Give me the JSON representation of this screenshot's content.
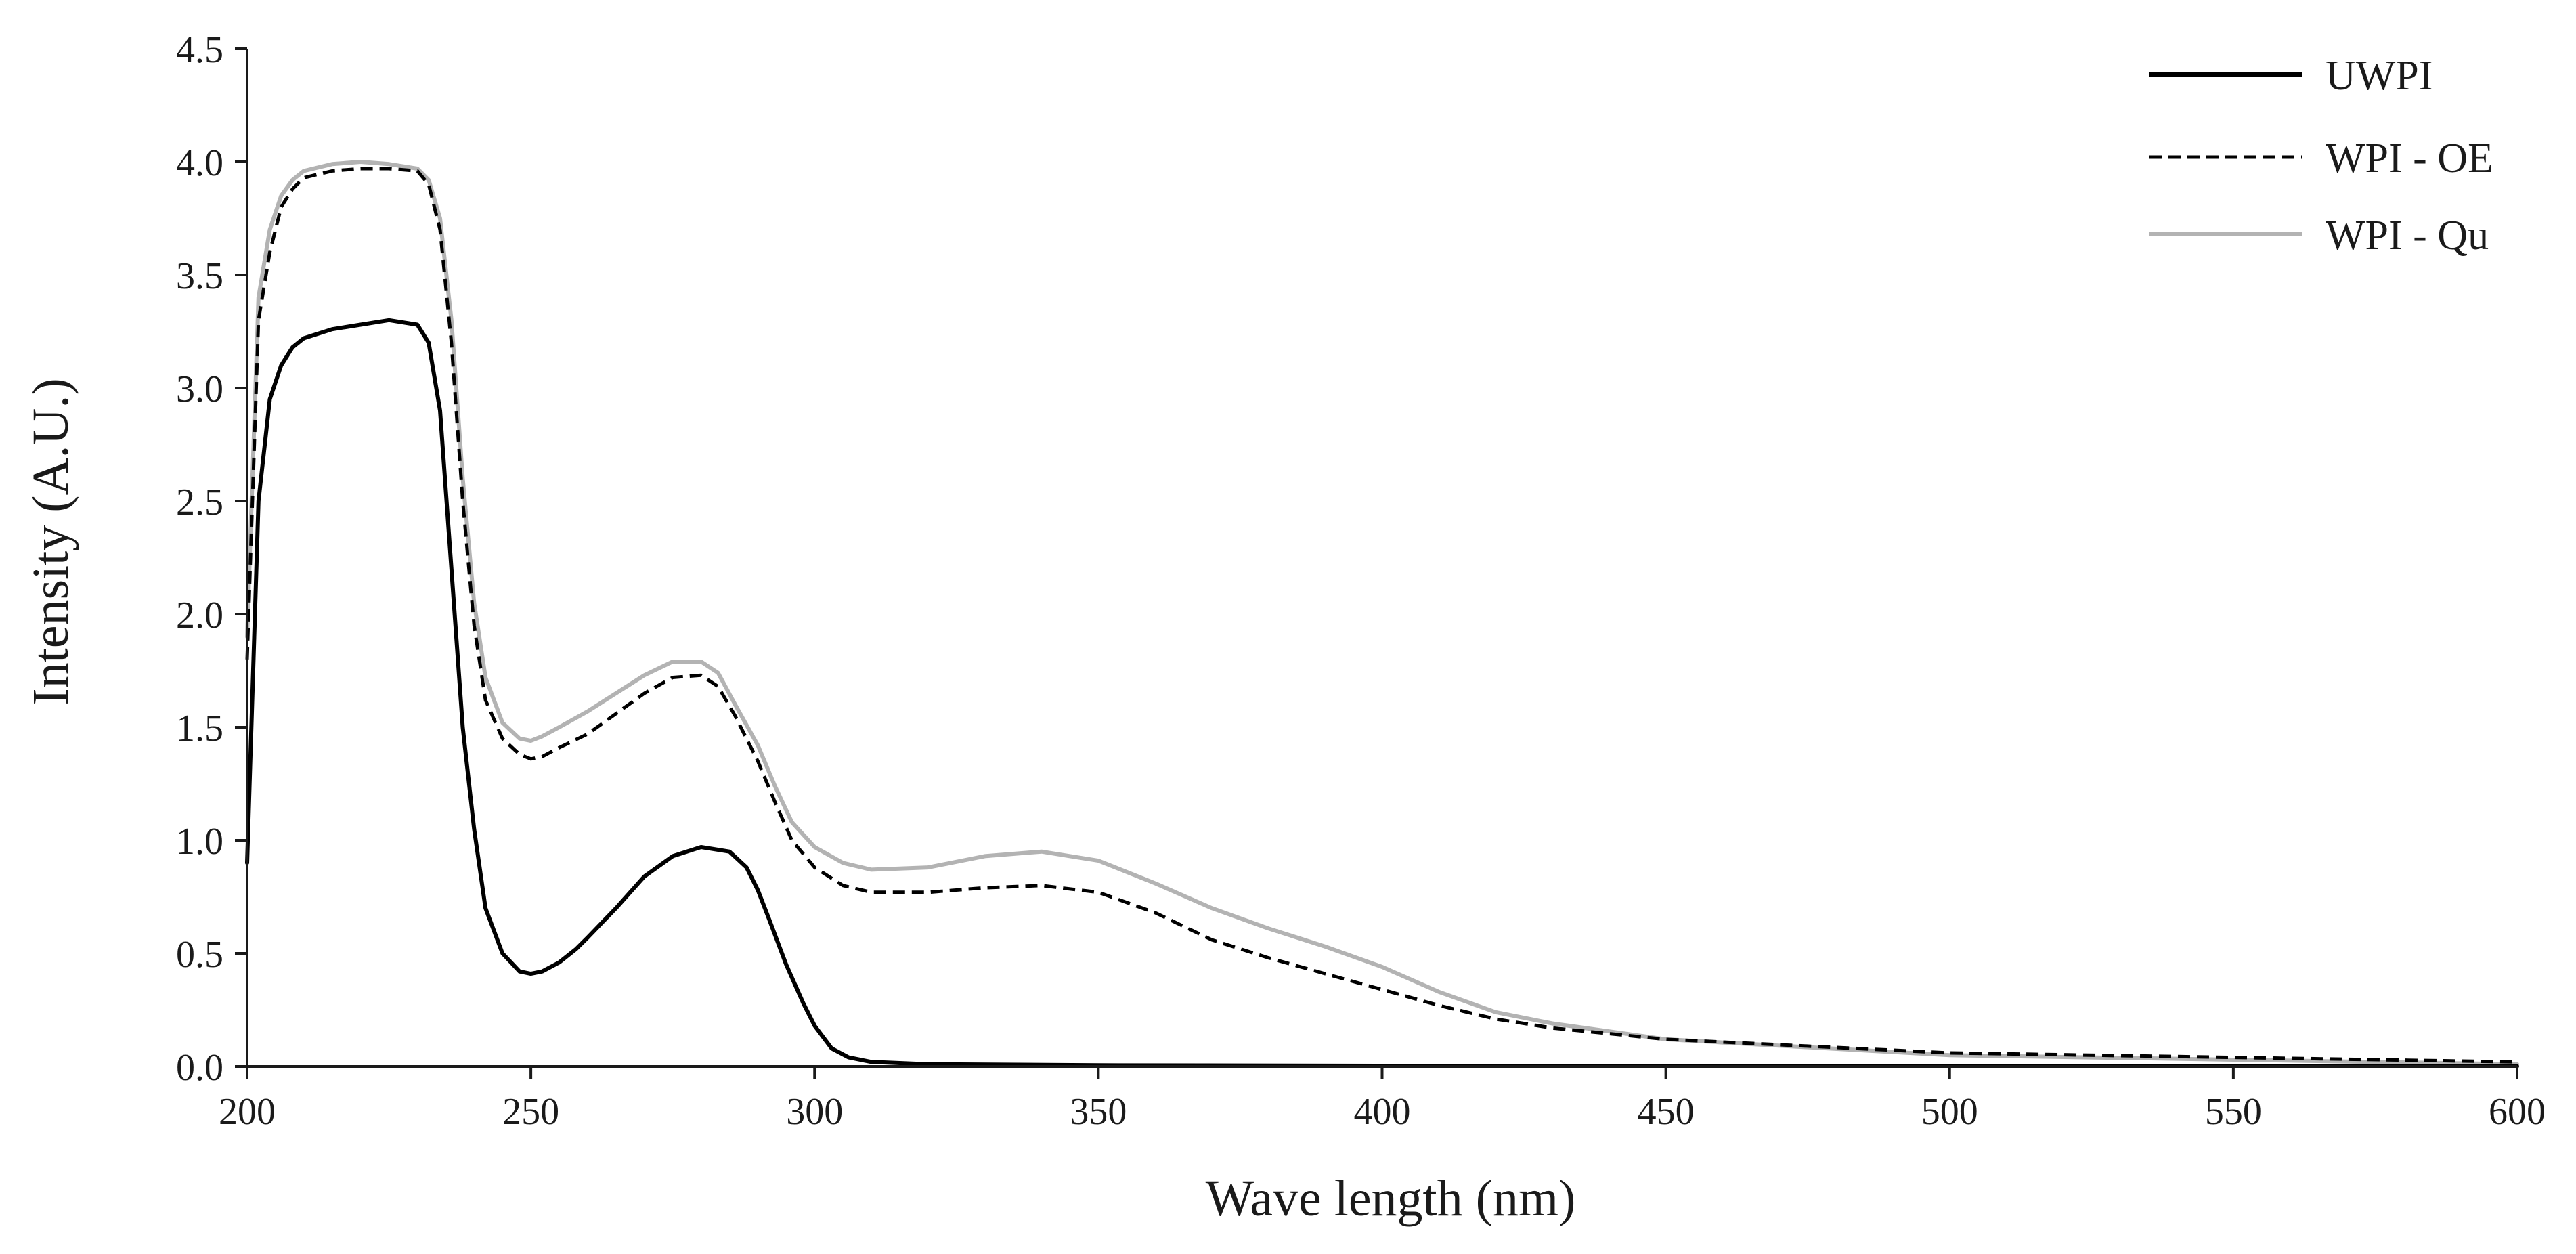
{
  "chart_data": {
    "type": "line",
    "title": "",
    "xlabel": "Wave length (nm)",
    "ylabel": "Intensity (A.U.)",
    "xlim": [
      200,
      600
    ],
    "ylim": [
      0,
      4.5
    ],
    "x_ticks": [
      200,
      250,
      300,
      350,
      400,
      450,
      500,
      550,
      600
    ],
    "y_ticks": [
      0,
      0.5,
      1.0,
      1.5,
      2.0,
      2.5,
      3.0,
      3.5,
      4.0,
      4.5
    ],
    "x_tick_labels": [
      "200",
      "250",
      "300",
      "350",
      "400",
      "450",
      "500",
      "550",
      "600"
    ],
    "y_tick_labels": [
      "0.0",
      "0.5",
      "1.0",
      "1.5",
      "2.0",
      "2.5",
      "3.0",
      "3.5",
      "4.0",
      "4.5"
    ],
    "grid": false,
    "legend_position": "top-right",
    "series": [
      {
        "name": "UWPI",
        "color": "#000000",
        "style": "solid",
        "x": [
          200,
          202,
          204,
          206,
          208,
          210,
          215,
          220,
          225,
          230,
          232,
          234,
          236,
          238,
          240,
          242,
          245,
          248,
          250,
          252,
          255,
          258,
          260,
          265,
          270,
          275,
          280,
          285,
          288,
          290,
          292,
          295,
          298,
          300,
          303,
          306,
          310,
          320,
          350,
          400,
          450,
          500,
          550,
          600
        ],
        "y": [
          0.9,
          2.5,
          2.95,
          3.1,
          3.18,
          3.22,
          3.26,
          3.28,
          3.3,
          3.28,
          3.2,
          2.9,
          2.2,
          1.5,
          1.05,
          0.7,
          0.5,
          0.42,
          0.41,
          0.42,
          0.46,
          0.52,
          0.57,
          0.7,
          0.84,
          0.93,
          0.97,
          0.95,
          0.88,
          0.78,
          0.65,
          0.45,
          0.28,
          0.18,
          0.08,
          0.04,
          0.02,
          0.01,
          0.005,
          0.003,
          0.002,
          0.002,
          0.002,
          0.001
        ]
      },
      {
        "name": "WPI - OE",
        "color": "#000000",
        "style": "dashed",
        "x": [
          200,
          202,
          204,
          206,
          208,
          210,
          215,
          220,
          225,
          230,
          232,
          234,
          236,
          238,
          240,
          242,
          245,
          248,
          250,
          252,
          255,
          260,
          265,
          270,
          275,
          280,
          283,
          286,
          290,
          293,
          296,
          300,
          305,
          310,
          320,
          330,
          340,
          350,
          360,
          370,
          380,
          390,
          400,
          410,
          420,
          430,
          450,
          500,
          550,
          600
        ],
        "y": [
          1.8,
          3.3,
          3.6,
          3.8,
          3.88,
          3.93,
          3.96,
          3.97,
          3.97,
          3.96,
          3.9,
          3.7,
          3.2,
          2.5,
          1.95,
          1.62,
          1.45,
          1.38,
          1.36,
          1.37,
          1.41,
          1.47,
          1.56,
          1.65,
          1.72,
          1.73,
          1.68,
          1.55,
          1.35,
          1.17,
          1.0,
          0.88,
          0.8,
          0.77,
          0.77,
          0.79,
          0.8,
          0.77,
          0.68,
          0.56,
          0.48,
          0.41,
          0.34,
          0.27,
          0.21,
          0.17,
          0.12,
          0.06,
          0.04,
          0.02
        ]
      },
      {
        "name": "WPI - Qu",
        "color": "#b3b3b3",
        "style": "solid",
        "x": [
          200,
          202,
          204,
          206,
          208,
          210,
          215,
          220,
          225,
          230,
          232,
          234,
          236,
          238,
          240,
          242,
          245,
          248,
          250,
          252,
          255,
          260,
          265,
          270,
          275,
          280,
          283,
          286,
          290,
          293,
          296,
          300,
          305,
          310,
          320,
          330,
          340,
          350,
          360,
          370,
          380,
          390,
          400,
          410,
          420,
          430,
          450,
          500,
          550,
          600
        ],
        "y": [
          1.9,
          3.4,
          3.7,
          3.85,
          3.92,
          3.96,
          3.99,
          4.0,
          3.99,
          3.97,
          3.92,
          3.75,
          3.3,
          2.6,
          2.05,
          1.72,
          1.52,
          1.45,
          1.44,
          1.46,
          1.5,
          1.57,
          1.65,
          1.73,
          1.79,
          1.79,
          1.74,
          1.6,
          1.42,
          1.24,
          1.08,
          0.97,
          0.9,
          0.87,
          0.88,
          0.93,
          0.95,
          0.91,
          0.81,
          0.7,
          0.61,
          0.53,
          0.44,
          0.33,
          0.24,
          0.19,
          0.12,
          0.05,
          0.03,
          0.01
        ]
      }
    ]
  }
}
